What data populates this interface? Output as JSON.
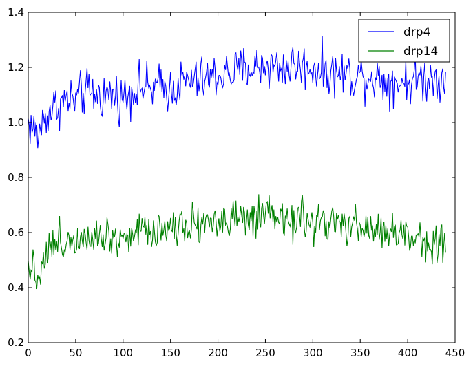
{
  "chart_data": {
    "type": "line",
    "title": "",
    "xlabel": "",
    "ylabel": "",
    "xlim": [
      0,
      450
    ],
    "ylim": [
      0.2,
      1.4
    ],
    "xticks": [
      "0",
      "50",
      "100",
      "150",
      "200",
      "250",
      "300",
      "350",
      "400",
      "450"
    ],
    "yticks": [
      "0.2",
      "0.4",
      "0.6",
      "0.8",
      "1.0",
      "1.2",
      "1.4"
    ],
    "grid": false,
    "legend_position": "top-right",
    "series": [
      {
        "name": "drp4",
        "color": "#0000ff",
        "points_x": [
          0,
          5,
          10,
          15,
          20,
          25,
          30,
          40,
          50,
          60,
          70,
          80,
          90,
          100,
          110,
          120,
          130,
          140,
          150,
          160,
          170,
          180,
          190,
          200,
          210,
          220,
          230,
          240,
          250,
          260,
          270,
          280,
          290,
          300,
          310,
          320,
          330,
          340,
          350,
          360,
          370,
          380,
          390,
          400,
          410,
          420,
          430,
          440
        ],
        "points_y": [
          1.0,
          0.98,
          0.95,
          1.0,
          1.03,
          1.05,
          1.06,
          1.08,
          1.08,
          1.11,
          1.1,
          1.1,
          1.1,
          1.09,
          1.12,
          1.13,
          1.12,
          1.13,
          1.12,
          1.14,
          1.15,
          1.15,
          1.16,
          1.17,
          1.18,
          1.18,
          1.2,
          1.2,
          1.21,
          1.2,
          1.2,
          1.21,
          1.2,
          1.2,
          1.19,
          1.18,
          1.18,
          1.17,
          1.17,
          1.17,
          1.16,
          1.15,
          1.15,
          1.15,
          1.16,
          1.16,
          1.16,
          1.17
        ],
        "amplitude": 0.09
      },
      {
        "name": "drp14",
        "color": "#008000",
        "points_x": [
          0,
          5,
          10,
          15,
          20,
          25,
          30,
          40,
          50,
          60,
          70,
          80,
          90,
          100,
          110,
          120,
          130,
          140,
          150,
          160,
          170,
          180,
          190,
          200,
          210,
          220,
          230,
          240,
          250,
          260,
          270,
          280,
          290,
          300,
          310,
          320,
          330,
          340,
          350,
          360,
          370,
          380,
          390,
          400,
          410,
          420,
          430,
          440
        ],
        "points_y": [
          0.5,
          0.47,
          0.44,
          0.5,
          0.53,
          0.55,
          0.56,
          0.57,
          0.58,
          0.6,
          0.6,
          0.59,
          0.59,
          0.58,
          0.6,
          0.61,
          0.61,
          0.62,
          0.62,
          0.63,
          0.64,
          0.64,
          0.64,
          0.64,
          0.64,
          0.64,
          0.65,
          0.64,
          0.65,
          0.65,
          0.64,
          0.65,
          0.64,
          0.64,
          0.63,
          0.63,
          0.62,
          0.62,
          0.62,
          0.61,
          0.61,
          0.6,
          0.59,
          0.59,
          0.58,
          0.57,
          0.56,
          0.56
        ],
        "amplitude": 0.08
      }
    ]
  }
}
